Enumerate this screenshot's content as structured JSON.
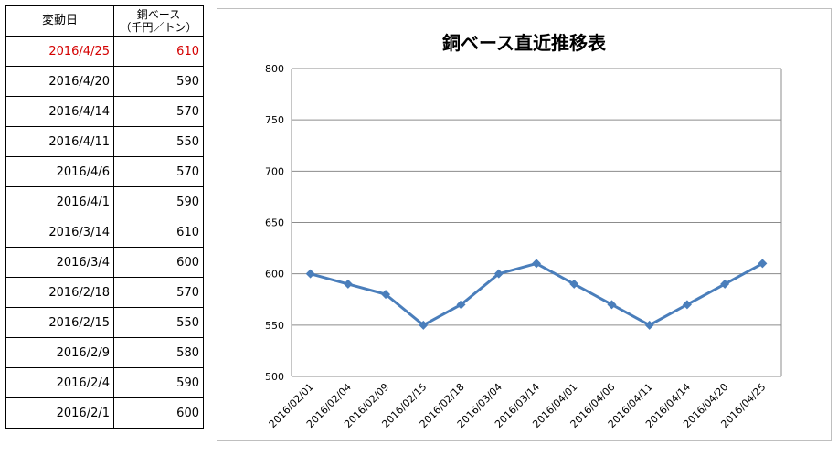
{
  "table": {
    "headers": {
      "date": "変動日",
      "price_line1": "銅ベース",
      "price_line2": "（千円／トン）"
    },
    "rows": [
      {
        "date": "2016/4/25",
        "price": "610",
        "latest": true
      },
      {
        "date": "2016/4/20",
        "price": "590"
      },
      {
        "date": "2016/4/14",
        "price": "570"
      },
      {
        "date": "2016/4/11",
        "price": "550"
      },
      {
        "date": "2016/4/6",
        "price": "570"
      },
      {
        "date": "2016/4/1",
        "price": "590"
      },
      {
        "date": "2016/3/14",
        "price": "610"
      },
      {
        "date": "2016/3/4",
        "price": "600"
      },
      {
        "date": "2016/2/18",
        "price": "570"
      },
      {
        "date": "2016/2/15",
        "price": "550"
      },
      {
        "date": "2016/2/9",
        "price": "580"
      },
      {
        "date": "2016/2/4",
        "price": "590"
      },
      {
        "date": "2016/2/1",
        "price": "600"
      }
    ]
  },
  "colors": {
    "latest_text": "#d40000",
    "series_line": "#4a7ebb",
    "gridline": "#8c8c8c"
  },
  "chart_data": {
    "type": "line",
    "title": "銅ベース直近推移表",
    "xlabel": "",
    "ylabel": "",
    "x": [
      "2016/02/01",
      "2016/02/04",
      "2016/02/09",
      "2016/02/15",
      "2016/02/18",
      "2016/03/04",
      "2016/03/14",
      "2016/04/01",
      "2016/04/06",
      "2016/04/11",
      "2016/04/14",
      "2016/04/20",
      "2016/04/25"
    ],
    "series": [
      {
        "values": [
          600,
          590,
          580,
          550,
          570,
          600,
          610,
          590,
          570,
          550,
          570,
          590,
          610
        ]
      }
    ],
    "ylim": [
      500,
      800
    ],
    "yticks": [
      500,
      550,
      600,
      650,
      700,
      750,
      800
    ],
    "grid": true,
    "marker": "diamond",
    "legend": "none"
  }
}
